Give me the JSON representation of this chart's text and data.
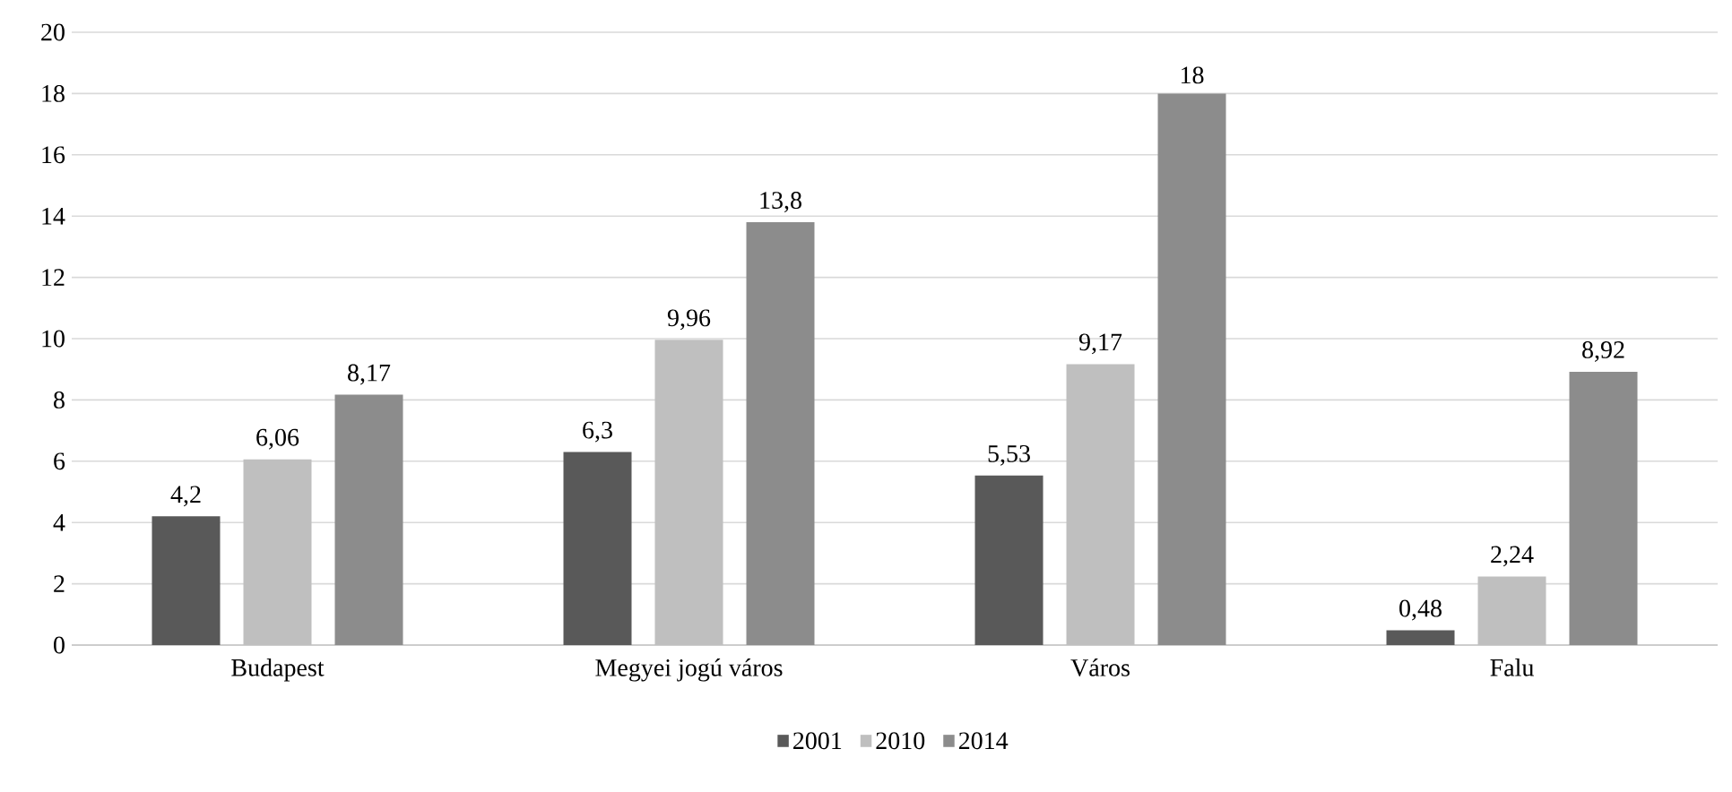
{
  "chart_data": {
    "type": "bar",
    "categories": [
      "Budapest",
      "Megyei jogú város",
      "Város",
      "Falu"
    ],
    "series": [
      {
        "name": "2001",
        "color": "#595959",
        "values": [
          4.2,
          6.3,
          5.53,
          0.48
        ],
        "value_labels": [
          "4,2",
          "6,3",
          "5,53",
          "0,48"
        ]
      },
      {
        "name": "2010",
        "color": "#bfbfbf",
        "values": [
          6.06,
          9.96,
          9.17,
          2.24
        ],
        "value_labels": [
          "6,06",
          "9,96",
          "9,17",
          "2,24"
        ]
      },
      {
        "name": "2014",
        "color": "#8c8c8c",
        "values": [
          8.17,
          13.8,
          18,
          8.92
        ],
        "value_labels": [
          "8,17",
          "13,8",
          "18",
          "8,92"
        ]
      }
    ],
    "ylim": [
      0,
      20
    ],
    "yticks": [
      0,
      2,
      4,
      6,
      8,
      10,
      12,
      14,
      16,
      18,
      20
    ],
    "grid": "y",
    "legend": "bottom"
  }
}
